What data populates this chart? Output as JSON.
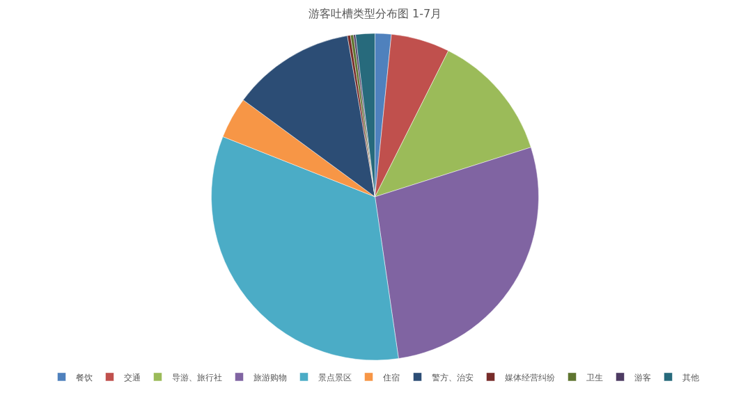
{
  "chart_data": {
    "type": "pie",
    "title": "游客吐槽类型分布图 1-7月",
    "categories": [
      "餐饮",
      "交通",
      "导游、旅行社",
      "旅游购物",
      "景点景区",
      "住宿",
      "警方、治安",
      "媒体经营纠纷",
      "卫生",
      "游客",
      "其他"
    ],
    "values": [
      1.6,
      5.8,
      12.7,
      27.6,
      33.3,
      4.1,
      12.2,
      0.3,
      0.3,
      0.2,
      1.9
    ],
    "colors": [
      "#4f81bd",
      "#c0504d",
      "#9bbb59",
      "#8064a2",
      "#4bacc6",
      "#f79646",
      "#2c4d75",
      "#772c2a",
      "#5f7530",
      "#4d3b62",
      "#276a7c"
    ],
    "legend": "bottom"
  }
}
